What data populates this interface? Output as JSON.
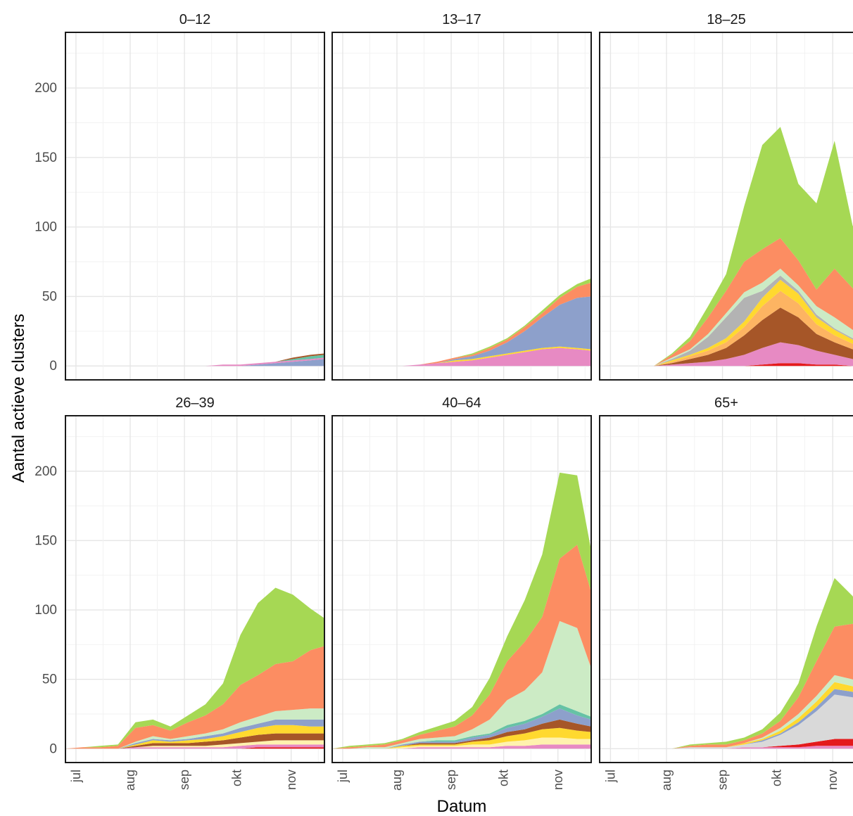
{
  "chart_data": {
    "type": "area",
    "stacked": true,
    "xlabel": "Datum",
    "ylabel": "Aantal actieve clusters",
    "ylim": [
      -10,
      240
    ],
    "yticks": [
      0,
      50,
      100,
      150,
      200
    ],
    "xlim": [
      "2020-06-25",
      "2020-11-20"
    ],
    "xticks": [
      {
        "date": "2020-07-01",
        "label": "jul"
      },
      {
        "date": "2020-08-01",
        "label": "aug"
      },
      {
        "date": "2020-09-01",
        "label": "sep"
      },
      {
        "date": "2020-10-01",
        "label": "okt"
      },
      {
        "date": "2020-11-01",
        "label": "nov"
      }
    ],
    "grid": true,
    "legend": "none",
    "series_colors": [
      "#8da0cb",
      "#e78ac3",
      "#a6d854",
      "#fc8d62",
      "#b3b3b3",
      "#ffd92f",
      "#e5c494",
      "#66c2a5",
      "#ccebc5",
      "#a65628",
      "#e41a1c",
      "#fdb462",
      "#bc80bd",
      "#fb9a99",
      "#fff2ae",
      "#1f78b4"
    ],
    "dates": [
      "2020-06-25",
      "2020-07-05",
      "2020-07-15",
      "2020-07-25",
      "2020-08-04",
      "2020-08-14",
      "2020-08-24",
      "2020-09-03",
      "2020-09-13",
      "2020-09-23",
      "2020-10-03",
      "2020-10-13",
      "2020-10-23",
      "2020-11-02",
      "2020-11-12",
      "2020-11-20"
    ],
    "panels": [
      {
        "title": "0–12",
        "series": [
          {
            "color": "#8da0cb",
            "values": [
              0,
              0,
              0,
              0,
              0,
              0,
              0,
              0,
              0,
              0,
              0,
              1,
              2,
              3,
              4,
              5
            ]
          },
          {
            "color": "#e78ac3",
            "values": [
              0,
              0,
              0,
              0,
              0,
              0,
              0,
              0,
              0,
              1,
              1,
              1,
              1,
              1,
              1,
              1
            ]
          },
          {
            "color": "#66c2a5",
            "values": [
              0,
              0,
              0,
              0,
              0,
              0,
              0,
              0,
              0,
              0,
              0,
              0,
              0,
              1,
              2,
              2
            ]
          },
          {
            "color": "#a65628",
            "values": [
              0,
              0,
              0,
              0,
              0,
              0,
              0,
              0,
              0,
              0,
              0,
              0,
              0,
              1,
              1,
              1
            ]
          }
        ]
      },
      {
        "title": "13–17",
        "series": [
          {
            "color": "#e78ac3",
            "values": [
              0,
              0,
              0,
              0,
              0,
              1,
              2,
              3,
              4,
              6,
              8,
              10,
              12,
              13,
              12,
              11
            ]
          },
          {
            "color": "#ffd92f",
            "values": [
              0,
              0,
              0,
              0,
              0,
              0,
              0,
              1,
              1,
              1,
              1,
              1,
              1,
              1,
              1,
              1
            ]
          },
          {
            "color": "#8da0cb",
            "values": [
              0,
              0,
              0,
              0,
              0,
              0,
              0,
              1,
              2,
              4,
              8,
              14,
              22,
              30,
              36,
              38
            ]
          },
          {
            "color": "#fc8d62",
            "values": [
              0,
              0,
              0,
              0,
              0,
              0,
              1,
              1,
              1,
              2,
              2,
              3,
              3,
              5,
              8,
              10
            ]
          },
          {
            "color": "#a6d854",
            "values": [
              0,
              0,
              0,
              0,
              0,
              0,
              0,
              0,
              1,
              1,
              1,
              1,
              2,
              2,
              2,
              3
            ]
          }
        ]
      },
      {
        "title": "18–25",
        "series": [
          {
            "color": "#e41a1c",
            "values": [
              0,
              0,
              0,
              0,
              0,
              0,
              0,
              0,
              0,
              1,
              2,
              2,
              1,
              1,
              0,
              0
            ]
          },
          {
            "color": "#e78ac3",
            "values": [
              0,
              0,
              0,
              0,
              1,
              2,
              3,
              5,
              8,
              12,
              15,
              13,
              10,
              7,
              5,
              4
            ]
          },
          {
            "color": "#a65628",
            "values": [
              0,
              0,
              0,
              0,
              1,
              3,
              5,
              8,
              14,
              20,
              25,
              20,
              12,
              9,
              7,
              6
            ]
          },
          {
            "color": "#fdb462",
            "values": [
              0,
              0,
              0,
              0,
              1,
              2,
              3,
              4,
              6,
              10,
              12,
              10,
              7,
              5,
              4,
              3
            ]
          },
          {
            "color": "#ffd92f",
            "values": [
              0,
              0,
              0,
              0,
              1,
              1,
              2,
              3,
              4,
              6,
              8,
              7,
              5,
              4,
              3,
              2
            ]
          },
          {
            "color": "#b3b3b3",
            "values": [
              0,
              0,
              0,
              0,
              1,
              3,
              8,
              15,
              17,
              5,
              3,
              2,
              2,
              1,
              1,
              1
            ]
          },
          {
            "color": "#ccebc5",
            "values": [
              0,
              0,
              0,
              0,
              1,
              1,
              2,
              3,
              4,
              6,
              5,
              4,
              6,
              8,
              6,
              5
            ]
          },
          {
            "color": "#fc8d62",
            "values": [
              0,
              0,
              0,
              0,
              2,
              6,
              12,
              16,
              22,
              24,
              22,
              18,
              12,
              35,
              30,
              28
            ]
          },
          {
            "color": "#a6d854",
            "values": [
              0,
              0,
              0,
              0,
              1,
              3,
              8,
              12,
              40,
              75,
              80,
              55,
              62,
              92,
              45,
              35
            ]
          }
        ]
      },
      {
        "title": "26–39",
        "series": [
          {
            "color": "#e41a1c",
            "values": [
              0,
              0,
              0,
              0,
              0,
              0,
              0,
              0,
              0,
              0,
              0,
              1,
              1,
              1,
              1,
              1
            ]
          },
          {
            "color": "#e78ac3",
            "values": [
              0,
              0,
              0,
              0,
              1,
              1,
              1,
              1,
              1,
              1,
              2,
              2,
              2,
              2,
              2,
              2
            ]
          },
          {
            "color": "#fff2ae",
            "values": [
              0,
              0,
              0,
              0,
              0,
              1,
              1,
              1,
              1,
              2,
              2,
              2,
              3,
              3,
              3,
              3
            ]
          },
          {
            "color": "#a65628",
            "values": [
              0,
              0,
              0,
              0,
              1,
              2,
              2,
              2,
              3,
              3,
              4,
              5,
              5,
              5,
              5,
              5
            ]
          },
          {
            "color": "#ffd92f",
            "values": [
              0,
              0,
              0,
              0,
              1,
              2,
              1,
              2,
              2,
              3,
              4,
              5,
              6,
              6,
              5,
              5
            ]
          },
          {
            "color": "#8da0cb",
            "values": [
              0,
              0,
              0,
              0,
              1,
              1,
              1,
              1,
              2,
              2,
              3,
              3,
              4,
              4,
              5,
              5
            ]
          },
          {
            "color": "#ccebc5",
            "values": [
              0,
              0,
              0,
              0,
              1,
              2,
              1,
              2,
              2,
              3,
              4,
              5,
              6,
              7,
              8,
              8
            ]
          },
          {
            "color": "#fc8d62",
            "values": [
              0,
              1,
              1,
              2,
              10,
              8,
              6,
              10,
              13,
              18,
              27,
              30,
              34,
              35,
              42,
              45
            ]
          },
          {
            "color": "#a6d854",
            "values": [
              0,
              0,
              1,
              1,
              4,
              4,
              3,
              5,
              8,
              15,
              36,
              52,
              55,
              48,
              30,
              20
            ]
          }
        ]
      },
      {
        "title": "40–64",
        "series": [
          {
            "color": "#e78ac3",
            "values": [
              0,
              0,
              0,
              0,
              0,
              1,
              1,
              1,
              1,
              1,
              2,
              2,
              3,
              3,
              3,
              3
            ]
          },
          {
            "color": "#fff2ae",
            "values": [
              0,
              0,
              0,
              0,
              1,
              1,
              1,
              1,
              2,
              2,
              3,
              4,
              5,
              5,
              4,
              4
            ]
          },
          {
            "color": "#ffd92f",
            "values": [
              0,
              0,
              0,
              0,
              1,
              1,
              1,
              1,
              2,
              3,
              4,
              5,
              6,
              7,
              6,
              5
            ]
          },
          {
            "color": "#a65628",
            "values": [
              0,
              0,
              0,
              0,
              0,
              1,
              1,
              1,
              1,
              2,
              3,
              3,
              4,
              6,
              5,
              4
            ]
          },
          {
            "color": "#8da0cb",
            "values": [
              0,
              0,
              0,
              0,
              1,
              1,
              1,
              1,
              2,
              2,
              3,
              4,
              5,
              8,
              6,
              5
            ]
          },
          {
            "color": "#66c2a5",
            "values": [
              0,
              0,
              0,
              0,
              0,
              0,
              1,
              1,
              1,
              1,
              2,
              2,
              2,
              3,
              3,
              2
            ]
          },
          {
            "color": "#ccebc5",
            "values": [
              0,
              0,
              1,
              1,
              1,
              2,
              2,
              3,
              5,
              10,
              18,
              22,
              30,
              60,
              60,
              35
            ]
          },
          {
            "color": "#fc8d62",
            "values": [
              0,
              1,
              1,
              2,
              2,
              3,
              5,
              7,
              10,
              18,
              28,
              35,
              40,
              45,
              60,
              55
            ]
          },
          {
            "color": "#a6d854",
            "values": [
              0,
              1,
              1,
              1,
              1,
              2,
              3,
              4,
              6,
              12,
              18,
              30,
              45,
              62,
              50,
              30
            ]
          }
        ]
      },
      {
        "title": "65+",
        "series": [
          {
            "color": "#e78ac3",
            "values": [
              0,
              0,
              0,
              0,
              0,
              0,
              0,
              0,
              1,
              1,
              1,
              1,
              2,
              2,
              2,
              2
            ]
          },
          {
            "color": "#e41a1c",
            "values": [
              0,
              0,
              0,
              0,
              0,
              0,
              0,
              0,
              0,
              0,
              1,
              2,
              3,
              5,
              5,
              4
            ]
          },
          {
            "color": "#d9d9d9",
            "values": [
              0,
              0,
              0,
              0,
              0,
              1,
              1,
              1,
              2,
              4,
              8,
              14,
              22,
              32,
              30,
              25
            ]
          },
          {
            "color": "#8da0cb",
            "values": [
              0,
              0,
              0,
              0,
              0,
              0,
              0,
              0,
              0,
              1,
              1,
              2,
              3,
              4,
              4,
              3
            ]
          },
          {
            "color": "#ffd92f",
            "values": [
              0,
              0,
              0,
              0,
              0,
              0,
              0,
              0,
              1,
              1,
              2,
              3,
              4,
              5,
              4,
              3
            ]
          },
          {
            "color": "#ccebc5",
            "values": [
              0,
              0,
              0,
              0,
              0,
              0,
              0,
              0,
              0,
              1,
              2,
              3,
              4,
              5,
              5,
              4
            ]
          },
          {
            "color": "#fc8d62",
            "values": [
              0,
              0,
              0,
              0,
              0,
              1,
              2,
              2,
              2,
              3,
              5,
              12,
              25,
              35,
              40,
              38
            ]
          },
          {
            "color": "#a6d854",
            "values": [
              0,
              0,
              0,
              0,
              0,
              1,
              1,
              2,
              2,
              3,
              6,
              10,
              25,
              35,
              20,
              10
            ]
          }
        ]
      }
    ]
  }
}
